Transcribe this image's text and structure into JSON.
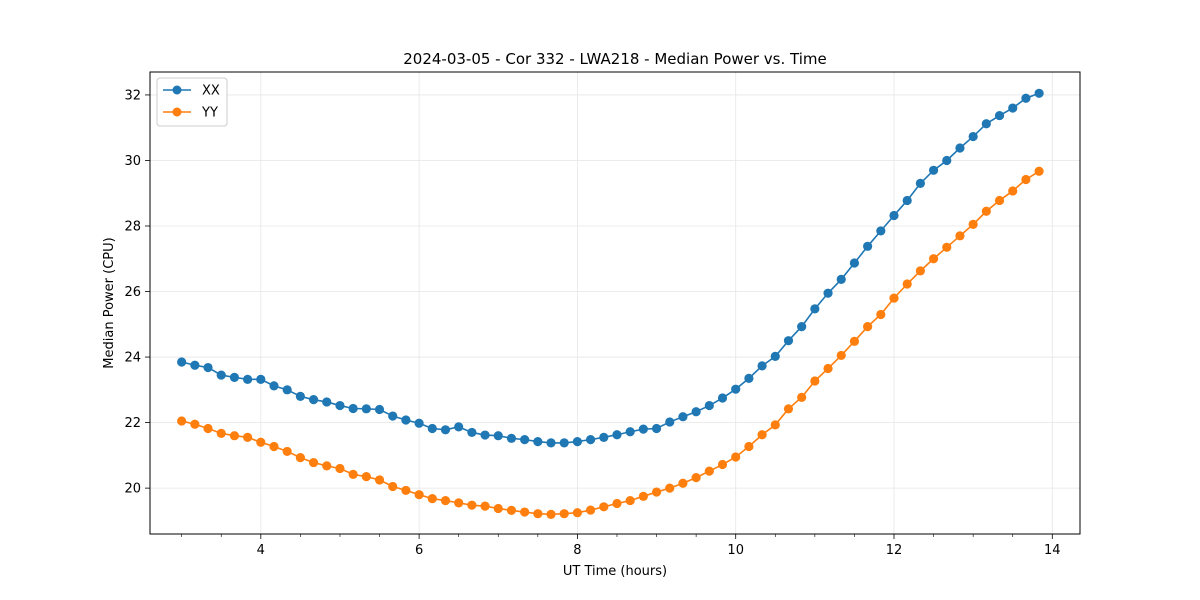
{
  "chart_data": {
    "type": "line",
    "title": "2024-03-05 - Cor 332 - LWA218 - Median Power vs. Time",
    "xlabel": "UT Time (hours)",
    "ylabel": "Median Power (CPU)",
    "xlim": [
      2.6,
      14.35
    ],
    "ylim": [
      18.6,
      32.7
    ],
    "xticks": [
      4,
      6,
      8,
      10,
      12,
      14
    ],
    "xticks_minor_step": 0.5,
    "yticks": [
      20,
      22,
      24,
      26,
      28,
      30,
      32
    ],
    "grid": true,
    "legend_position": "top-left",
    "x": [
      3.0,
      3.1667,
      3.3333,
      3.5,
      3.6667,
      3.8333,
      4.0,
      4.1667,
      4.3333,
      4.5,
      4.6667,
      4.8333,
      5.0,
      5.1667,
      5.3333,
      5.5,
      5.6667,
      5.8333,
      6.0,
      6.1667,
      6.3333,
      6.5,
      6.6667,
      6.8333,
      7.0,
      7.1667,
      7.3333,
      7.5,
      7.6667,
      7.8333,
      8.0,
      8.1667,
      8.3333,
      8.5,
      8.6667,
      8.8333,
      9.0,
      9.1667,
      9.3333,
      9.5,
      9.6667,
      9.8333,
      10.0,
      10.1667,
      10.3333,
      10.5,
      10.6667,
      10.8333,
      11.0,
      11.1667,
      11.3333,
      11.5,
      11.6667,
      11.8333,
      12.0,
      12.1667,
      12.3333,
      12.5,
      12.6667,
      12.8333,
      13.0,
      13.1667,
      13.3333,
      13.5,
      13.6667,
      13.8333
    ],
    "series": [
      {
        "name": "XX",
        "color": "#1f77b4",
        "values": [
          23.85,
          23.75,
          23.68,
          23.45,
          23.38,
          23.32,
          23.32,
          23.12,
          23.0,
          22.8,
          22.7,
          22.63,
          22.52,
          22.43,
          22.42,
          22.4,
          22.2,
          22.08,
          21.98,
          21.82,
          21.78,
          21.87,
          21.7,
          21.62,
          21.6,
          21.52,
          21.48,
          21.42,
          21.38,
          21.38,
          21.42,
          21.48,
          21.55,
          21.63,
          21.72,
          21.8,
          21.82,
          22.02,
          22.18,
          22.33,
          22.52,
          22.75,
          23.02,
          23.35,
          23.73,
          24.02,
          24.5,
          24.93,
          25.47,
          25.95,
          26.37,
          26.87,
          27.38,
          27.85,
          28.32,
          28.78,
          29.3,
          29.7,
          30.0,
          30.38,
          30.73,
          31.12,
          31.37,
          31.6,
          31.9,
          32.05
        ]
      },
      {
        "name": "YY",
        "color": "#ff7f0e",
        "values": [
          22.05,
          21.95,
          21.82,
          21.67,
          21.6,
          21.55,
          21.4,
          21.27,
          21.12,
          20.93,
          20.78,
          20.68,
          20.6,
          20.42,
          20.35,
          20.25,
          20.05,
          19.93,
          19.8,
          19.68,
          19.62,
          19.55,
          19.48,
          19.45,
          19.38,
          19.32,
          19.27,
          19.22,
          19.2,
          19.22,
          19.25,
          19.33,
          19.43,
          19.53,
          19.62,
          19.75,
          19.88,
          20.0,
          20.15,
          20.32,
          20.52,
          20.72,
          20.95,
          21.27,
          21.63,
          21.93,
          22.42,
          22.77,
          23.27,
          23.65,
          24.05,
          24.48,
          24.93,
          25.3,
          25.8,
          26.23,
          26.63,
          27.0,
          27.35,
          27.7,
          28.05,
          28.45,
          28.78,
          29.07,
          29.42,
          29.67
        ]
      }
    ]
  }
}
